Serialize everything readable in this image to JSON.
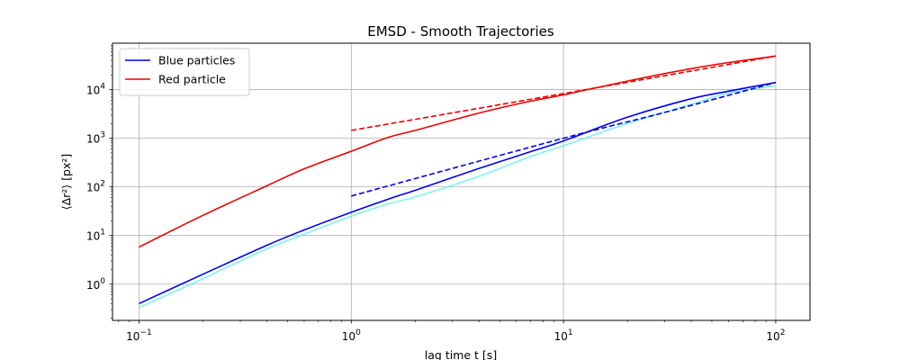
{
  "chart_data": {
    "type": "line",
    "title": "EMSD - Smooth Trajectories",
    "xlabel": "lag time t [s]",
    "ylabel": "⟨Δr²⟩ [px²]",
    "xscale": "log",
    "yscale": "log",
    "xlim": [
      0.075,
      145
    ],
    "ylim": [
      0.18,
      90000
    ],
    "grid": true,
    "legend_position": "top-left",
    "x_ticks": [
      {
        "value": 0.1,
        "base": "10",
        "exp": "−1"
      },
      {
        "value": 1,
        "base": "10",
        "exp": "0"
      },
      {
        "value": 10,
        "base": "10",
        "exp": "1"
      },
      {
        "value": 100,
        "base": "10",
        "exp": "2"
      }
    ],
    "y_ticks": [
      {
        "value": 1,
        "base": "10",
        "exp": "0"
      },
      {
        "value": 10,
        "base": "10",
        "exp": "1"
      },
      {
        "value": 100,
        "base": "10",
        "exp": "2"
      },
      {
        "value": 1000,
        "base": "10",
        "exp": "3"
      },
      {
        "value": 10000,
        "base": "10",
        "exp": "4"
      }
    ],
    "series": [
      {
        "name": "",
        "color": "#7ff2f2",
        "style": "solid",
        "in_legend": false,
        "x": [
          0.1,
          0.2,
          0.4,
          0.6,
          1,
          1.5,
          2,
          4,
          7,
          10,
          20,
          40,
          60,
          100
        ],
        "y": [
          0.33,
          1.3,
          5.3,
          10.6,
          25,
          45,
          62,
          165,
          420,
          700,
          2000,
          5000,
          8500,
          12000
        ]
      },
      {
        "name": "Blue particles",
        "color": "#0000ee",
        "style": "solid",
        "in_legend": true,
        "x": [
          0.1,
          0.2,
          0.4,
          0.6,
          1,
          1.6,
          2,
          4,
          7,
          10,
          20,
          40,
          60,
          100
        ],
        "y": [
          0.4,
          1.6,
          6.3,
          13,
          30,
          62,
          85,
          240,
          530,
          880,
          2700,
          6500,
          9300,
          14000
        ]
      },
      {
        "name": "",
        "color": "#0000ee",
        "style": "dashed",
        "in_legend": false,
        "x": [
          1,
          10,
          30,
          100
        ],
        "y": [
          65,
          1000,
          3400,
          14000
        ]
      },
      {
        "name": "Red particle",
        "color": "#ee0000",
        "style": "solid",
        "in_legend": true,
        "x": [
          0.1,
          0.2,
          0.4,
          0.6,
          1,
          1.5,
          2,
          4,
          7,
          10,
          20,
          40,
          60,
          100
        ],
        "y": [
          5.8,
          26,
          105,
          235,
          540,
          1050,
          1450,
          3300,
          5800,
          7800,
          15000,
          27000,
          36000,
          49000
        ]
      },
      {
        "name": "",
        "color": "#ee0000",
        "style": "dashed",
        "in_legend": false,
        "x": [
          1,
          10,
          100
        ],
        "y": [
          1450,
          8300,
          49000
        ]
      }
    ]
  }
}
